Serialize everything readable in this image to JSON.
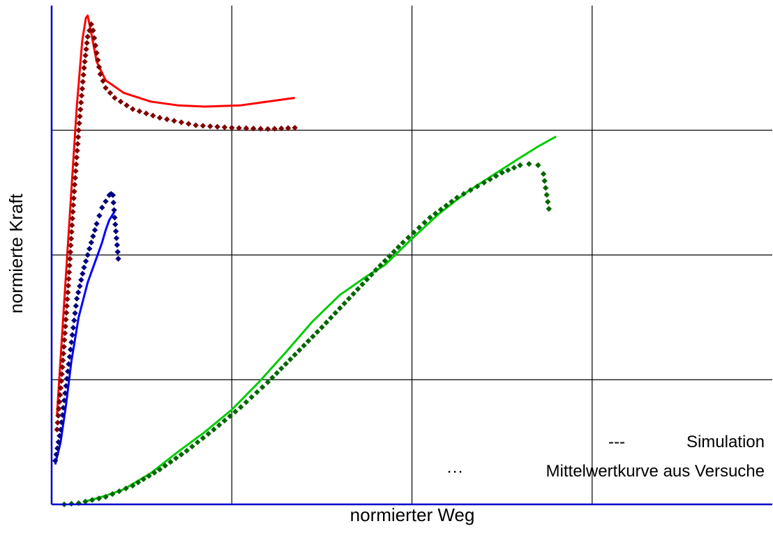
{
  "chart_data": {
    "type": "scatter",
    "xlabel": "normierter Weg",
    "ylabel": "normierte Kraft",
    "xlim": [
      0,
      4
    ],
    "ylim": [
      0,
      4
    ],
    "grid": true,
    "tick_labels_shown": false,
    "legend": {
      "placement": "bottom-right",
      "entries": [
        {
          "symbol": "---",
          "label": "Simulation",
          "style": "line"
        },
        {
          "symbol": "···",
          "label": "Mittelwertkurve aus Versuche",
          "style": "markers"
        }
      ]
    },
    "series": [
      {
        "style": "line",
        "color": "#ff0000",
        "x": [
          0.03,
          0.06,
          0.1,
          0.14,
          0.17,
          0.19,
          0.2,
          0.22,
          0.25,
          0.3,
          0.4,
          0.55,
          0.7,
          0.85,
          1.05,
          1.25,
          1.35
        ],
        "y": [
          0.72,
          1.4,
          2.3,
          3.2,
          3.72,
          3.9,
          3.92,
          3.78,
          3.55,
          3.4,
          3.3,
          3.23,
          3.2,
          3.19,
          3.2,
          3.24,
          3.26
        ]
      },
      {
        "style": "markers",
        "color": "#7f0000",
        "x": [
          0.03,
          0.06,
          0.09,
          0.12,
          0.15,
          0.18,
          0.2,
          0.22,
          0.23,
          0.25,
          0.27,
          0.3,
          0.35,
          0.45,
          0.6,
          0.8,
          1.0,
          1.2,
          1.35
        ],
        "y": [
          0.6,
          1.1,
          1.7,
          2.4,
          3.0,
          3.5,
          3.75,
          3.85,
          3.8,
          3.62,
          3.45,
          3.34,
          3.26,
          3.17,
          3.1,
          3.04,
          3.02,
          3.01,
          3.02
        ]
      },
      {
        "style": "line",
        "color": "#0000ff",
        "x": [
          0.02,
          0.05,
          0.08,
          0.11,
          0.15,
          0.2,
          0.25,
          0.28,
          0.3,
          0.32,
          0.35
        ],
        "y": [
          0.32,
          0.5,
          0.8,
          1.15,
          1.5,
          1.78,
          1.98,
          2.1,
          2.2,
          2.28,
          2.35
        ]
      },
      {
        "style": "markers",
        "color": "#00007f",
        "x": [
          0.02,
          0.05,
          0.08,
          0.11,
          0.14,
          0.18,
          0.22,
          0.25,
          0.28,
          0.3,
          0.32,
          0.33,
          0.34,
          0.35,
          0.37
        ],
        "y": [
          0.35,
          0.6,
          0.95,
          1.3,
          1.65,
          1.9,
          2.1,
          2.25,
          2.38,
          2.43,
          2.48,
          2.49,
          2.48,
          2.3,
          1.97
        ]
      },
      {
        "style": "line",
        "color": "#00cc00",
        "x": [
          0.18,
          0.3,
          0.4,
          0.55,
          0.7,
          0.85,
          1.0,
          1.15,
          1.3,
          1.45,
          1.6,
          1.75,
          1.85,
          2.0,
          2.15,
          2.3,
          2.45,
          2.6,
          2.7,
          2.8
        ],
        "y": [
          0.02,
          0.07,
          0.12,
          0.25,
          0.42,
          0.58,
          0.76,
          0.98,
          1.22,
          1.47,
          1.68,
          1.83,
          1.92,
          2.13,
          2.33,
          2.5,
          2.64,
          2.78,
          2.87,
          2.95
        ]
      },
      {
        "style": "markers",
        "color": "#006600",
        "x": [
          0.07,
          0.15,
          0.3,
          0.45,
          0.6,
          0.75,
          0.9,
          1.05,
          1.2,
          1.35,
          1.5,
          1.65,
          1.8,
          1.95,
          2.1,
          2.25,
          2.4,
          2.5,
          2.6,
          2.65,
          2.7,
          2.73,
          2.76
        ],
        "y": [
          0.0,
          0.01,
          0.06,
          0.15,
          0.28,
          0.43,
          0.6,
          0.78,
          0.98,
          1.2,
          1.42,
          1.65,
          1.88,
          2.1,
          2.3,
          2.46,
          2.58,
          2.66,
          2.72,
          2.73,
          2.72,
          2.65,
          2.37
        ]
      }
    ]
  }
}
